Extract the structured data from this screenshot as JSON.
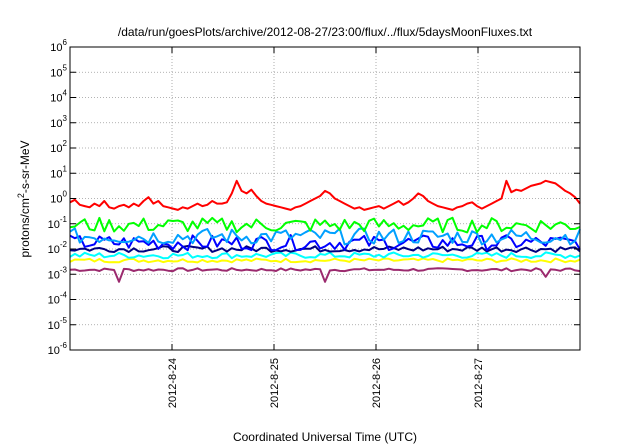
{
  "chart_data": {
    "type": "line",
    "title": "/data/run/goesPlots/archive/2012-08-27/23:00/flux/../flux/5daysMoonFluxes.txt",
    "xlabel": "Coordinated Universal Time (UTC)",
    "ylabel_base": "protons/cm",
    "ylabel_sup": "2",
    "ylabel_rest": "-s-sr-MeV",
    "yscale": "log",
    "ylim_exp": [
      -6,
      6
    ],
    "y_tick_exponents": [
      -6,
      -5,
      -4,
      -3,
      -2,
      -1,
      0,
      1,
      2,
      3,
      4,
      5,
      6
    ],
    "x_ticks": [
      "2012-8-24",
      "2012-8-25",
      "2012-8-26",
      "2012-8-27"
    ],
    "x_tick_day_positions": [
      1,
      2,
      3,
      4
    ],
    "xlim_days": [
      0,
      5
    ],
    "grid": true,
    "series": [
      {
        "color": "#ff0000",
        "log10_values": [
          -0.15,
          -0.05,
          -0.25,
          -0.3,
          -0.35,
          -0.2,
          -0.3,
          -0.1,
          -0.35,
          -0.4,
          -0.3,
          -0.25,
          -0.35,
          -0.2,
          -0.3,
          -0.1,
          0.05,
          -0.2,
          -0.1,
          -0.3,
          -0.35,
          -0.4,
          -0.45,
          -0.35,
          -0.4,
          -0.3,
          -0.2,
          -0.3,
          -0.25,
          -0.1,
          -0.2,
          -0.2,
          -0.15,
          0.2,
          0.7,
          0.3,
          0.2,
          0.35,
          0.1,
          -0.1,
          -0.2,
          -0.25,
          -0.3,
          -0.35,
          -0.4,
          -0.45,
          -0.35,
          -0.3,
          -0.2,
          -0.1,
          0.0,
          0.1,
          0.3,
          0.2,
          0.0,
          -0.1,
          -0.2,
          -0.3,
          -0.4,
          -0.35,
          -0.45,
          -0.4,
          -0.35,
          -0.3,
          -0.4,
          -0.3,
          -0.2,
          -0.1,
          -0.25,
          -0.15,
          0.0,
          0.2,
          0.1,
          -0.1,
          -0.2,
          -0.3,
          -0.35,
          -0.4,
          -0.45,
          -0.35,
          -0.3,
          -0.2,
          -0.15,
          -0.3,
          -0.4,
          -0.3,
          -0.2,
          -0.1,
          0.0,
          0.7,
          0.25,
          0.35,
          0.3,
          0.4,
          0.5,
          0.55,
          0.6,
          0.7,
          0.65,
          0.6,
          0.45,
          0.3,
          0.2,
          0.05,
          -0.2
        ]
      },
      {
        "color": "#00ff00",
        "base": -1.05,
        "amp": 0.3
      },
      {
        "color": "#00a0ff",
        "base": -1.5,
        "amp": 0.32
      },
      {
        "color": "#0000ff",
        "base": -1.75,
        "amp": 0.3
      },
      {
        "color": "#000080",
        "base": -2.0,
        "amp": 0.12
      },
      {
        "color": "#00ffff",
        "base": -2.25,
        "amp": 0.12
      },
      {
        "color": "#ffff00",
        "base": -2.45,
        "amp": 0.08
      },
      {
        "color": "#9b2a6e",
        "base": -2.82,
        "amp": 0.06,
        "dips": [
          [
            10,
            -3.3
          ],
          [
            52,
            -3.3
          ],
          [
            97,
            -3.1
          ]
        ]
      }
    ]
  }
}
